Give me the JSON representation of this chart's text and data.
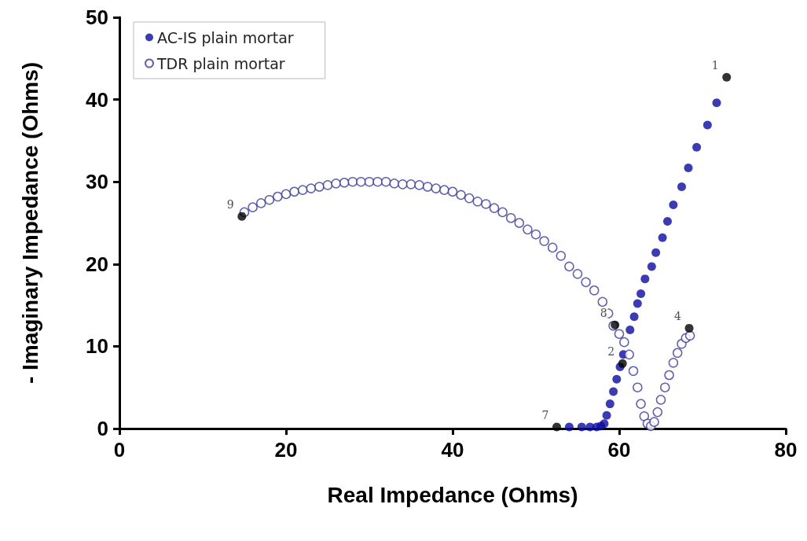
{
  "chart_data": {
    "type": "scatter",
    "xlabel": "Real Impedance (Ohms)",
    "ylabel": "- Imaginary Impedance (Ohms)",
    "xlim": [
      0,
      80
    ],
    "xticks": [
      0,
      20,
      40,
      60,
      80
    ],
    "ylim": [
      0,
      50
    ],
    "yticks": [
      0,
      10,
      20,
      30,
      40,
      50
    ],
    "grid": false,
    "legend": "top left",
    "marker": "circle",
    "series": [
      {
        "name": "AC-IS plain mortar",
        "color": "#0a0aa0",
        "x": [
          54,
          55.5,
          56.5,
          57.3,
          57.8,
          58.2,
          58.5,
          58.9,
          59.3,
          59.7,
          60.1,
          60.5,
          60.9,
          61.3,
          61.8,
          62.2,
          62.6,
          63.1,
          63.9,
          64.4,
          65.2,
          65.8,
          66.5,
          67.5,
          68.3,
          69.3,
          70.6,
          71.7
        ],
        "values": [
          0.2,
          0.2,
          0.2,
          0.2,
          0.3,
          0.6,
          1.6,
          3,
          4.5,
          6,
          7.5,
          9,
          null,
          12,
          13.6,
          15.2,
          16.4,
          18.2,
          19.7,
          21.4,
          23.2,
          25.2,
          27.2,
          29.4,
          31.7,
          34.2,
          36.9,
          39.6
        ]
      },
      {
        "name": "TDR plain mortar",
        "color": "#3a3a9a",
        "x": [
          15,
          16,
          17,
          18,
          19,
          20,
          21,
          22,
          23,
          24,
          25,
          26,
          27,
          28,
          29,
          30,
          31,
          32,
          33,
          34,
          35,
          36,
          37,
          38,
          39,
          40,
          41,
          42,
          43,
          44,
          45,
          46,
          47,
          48,
          49,
          50,
          51,
          52,
          53,
          54,
          55,
          56,
          57,
          58,
          58.7,
          59.3,
          60,
          60.6,
          61.2,
          61.7,
          62.2,
          62.6,
          63,
          63.4,
          63.8,
          64.2,
          64.6,
          65,
          65.5,
          66,
          66.5,
          67,
          67.5,
          68,
          68.5
        ],
        "values": [
          26.3,
          26.9,
          27.4,
          27.8,
          28.2,
          28.5,
          28.8,
          29,
          29.2,
          29.4,
          29.6,
          29.8,
          29.9,
          30,
          30,
          30,
          30,
          30,
          29.8,
          29.7,
          29.7,
          29.6,
          29.4,
          29.2,
          29,
          28.8,
          28.4,
          28,
          27.6,
          27.3,
          26.8,
          26.3,
          25.6,
          25,
          24.2,
          23.6,
          22.8,
          22,
          21,
          19.7,
          18.8,
          17.8,
          16.8,
          15.4,
          14,
          12.5,
          11.5,
          10.5,
          9,
          7,
          5,
          3,
          1.5,
          0.6,
          0.3,
          0.8,
          2,
          3.5,
          5,
          6.5,
          8,
          9.2,
          10.3,
          11,
          11.3
        ]
      },
      {
        "color": "#000000",
        "x": [
          72.9,
          60.4,
          68.4,
          52.5,
          59.5,
          14.7
        ],
        "values": [
          42.7,
          7.9,
          12.2,
          0.2,
          12.6,
          25.8
        ]
      }
    ],
    "annotations": [
      {
        "text": "1",
        "x": 72.9,
        "y": 42.7
      },
      {
        "text": "2",
        "x": 60.4,
        "y": 7.9
      },
      {
        "text": "4",
        "x": 68.4,
        "y": 12.2
      },
      {
        "text": "7",
        "x": 52.5,
        "y": 0.2
      },
      {
        "text": "8",
        "x": 59.5,
        "y": 12.6
      },
      {
        "text": "9",
        "x": 14.7,
        "y": 25.8
      }
    ]
  }
}
